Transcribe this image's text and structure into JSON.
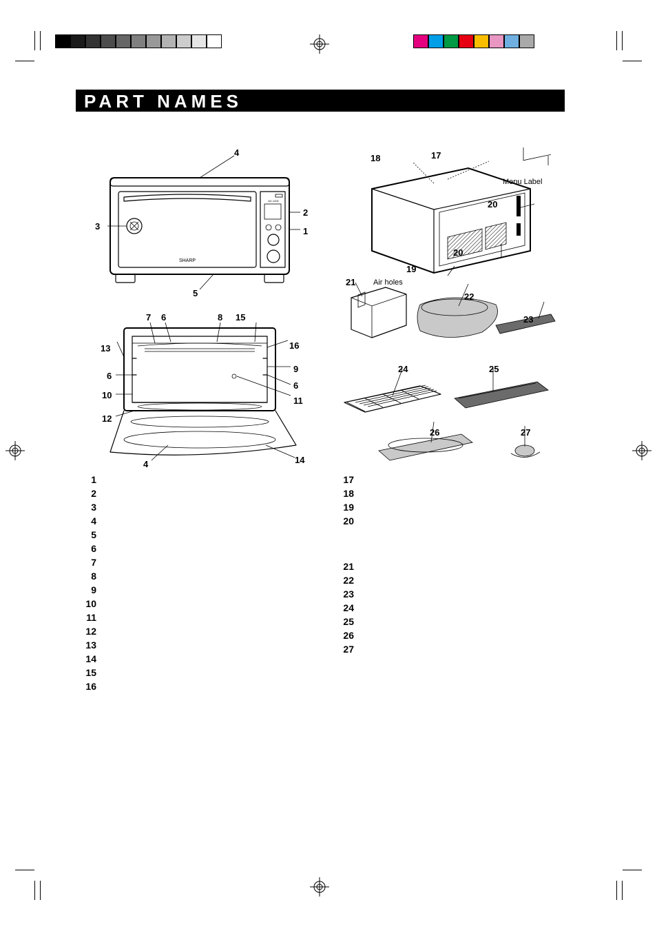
{
  "title": "PART  NAMES",
  "labels": {
    "menu_label": "Menu Label",
    "air_holes": "Air holes",
    "brand": "SHARP"
  },
  "callouts": {
    "front": {
      "1": "1",
      "2": "2",
      "3": "3",
      "4": "4",
      "5": "5"
    },
    "open": {
      "4b": "4",
      "6a": "6",
      "6b": "6",
      "6c": "6",
      "7": "7",
      "8": "8",
      "9": "9",
      "10": "10",
      "11": "11",
      "12": "12",
      "13": "13",
      "14": "14",
      "15": "15",
      "16": "16"
    },
    "rear": {
      "17": "17",
      "18": "18",
      "19": "19",
      "20a": "20",
      "20b": "20"
    },
    "tank": {
      "21": "21",
      "22": "22",
      "23": "23"
    },
    "trays": {
      "24": "24",
      "25": "25",
      "26": "26",
      "27": "27"
    }
  },
  "list_left": [
    "1",
    "2",
    "3",
    "4",
    "5",
    "6",
    "7",
    "8",
    "9",
    "10",
    "11",
    "12",
    "13",
    "14",
    "15",
    "16"
  ],
  "list_right_a": [
    "17",
    "18",
    "19",
    "20"
  ],
  "list_right_b": [
    "21",
    "22",
    "23",
    "24",
    "25",
    "26",
    "27"
  ],
  "colors": {
    "ink": "#000000",
    "bg": "#ffffff",
    "gray": "#c9c9c9",
    "dark_gray": "#6b6b6b",
    "bar_colors_left": [
      "#000000",
      "#1a1a1a",
      "#333333",
      "#4d4d4d",
      "#666666",
      "#808080",
      "#999999",
      "#b3b3b3",
      "#cccccc",
      "#e6e6e6",
      "#ffffff"
    ],
    "bar_colors_right": [
      "#e4007f",
      "#009fe8",
      "#009944",
      "#e60012",
      "#f9be00",
      "#e897c3",
      "#6fb0e0",
      "#a9a9a9"
    ]
  }
}
